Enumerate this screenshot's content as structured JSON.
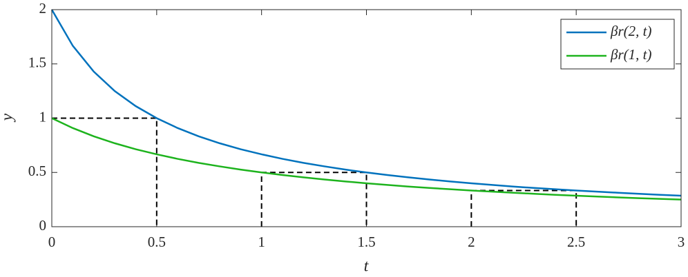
{
  "chart_data": {
    "type": "line",
    "x_label": "t",
    "y_label": "y",
    "x": [
      0,
      0.1,
      0.2,
      0.3,
      0.4,
      0.5,
      0.6,
      0.7,
      0.8,
      0.9,
      1,
      1.1,
      1.2,
      1.3,
      1.4,
      1.5,
      1.6,
      1.7,
      1.8,
      1.9,
      2,
      2.1,
      2.2,
      2.3,
      2.4,
      2.5,
      2.6,
      2.7,
      2.8,
      2.9,
      3
    ],
    "series": [
      {
        "name": "βr(2, t)",
        "color": "#0072bd",
        "values": [
          2,
          1.667,
          1.429,
          1.25,
          1.111,
          1,
          0.909,
          0.833,
          0.769,
          0.714,
          0.667,
          0.625,
          0.588,
          0.556,
          0.526,
          0.5,
          0.476,
          0.455,
          0.435,
          0.417,
          0.4,
          0.385,
          0.37,
          0.357,
          0.345,
          0.333,
          0.323,
          0.313,
          0.303,
          0.294,
          0.286
        ]
      },
      {
        "name": "βr(1, t)",
        "color": "#1db31d",
        "values": [
          1,
          0.909,
          0.833,
          0.769,
          0.714,
          0.667,
          0.625,
          0.588,
          0.556,
          0.526,
          0.5,
          0.476,
          0.455,
          0.435,
          0.417,
          0.4,
          0.385,
          0.37,
          0.357,
          0.345,
          0.333,
          0.323,
          0.313,
          0.303,
          0.294,
          0.286,
          0.278,
          0.27,
          0.263,
          0.256,
          0.25
        ]
      }
    ],
    "dashed_lines": [
      {
        "x": [
          0,
          0.5,
          0.5
        ],
        "y": [
          1,
          1,
          0
        ]
      },
      {
        "x": [
          1,
          1,
          1.5,
          1.5
        ],
        "y": [
          0,
          0.5,
          0.5,
          0
        ]
      },
      {
        "x": [
          2,
          2,
          2.5,
          2.5
        ],
        "y": [
          0,
          0.333,
          0.333,
          0
        ]
      }
    ],
    "xlim": [
      0,
      3
    ],
    "ylim": [
      0,
      2
    ],
    "xticks": [
      0,
      0.5,
      1,
      1.5,
      2,
      2.5,
      3
    ],
    "yticks": [
      0,
      0.5,
      1,
      1.5,
      2
    ],
    "legend": "upper right"
  }
}
